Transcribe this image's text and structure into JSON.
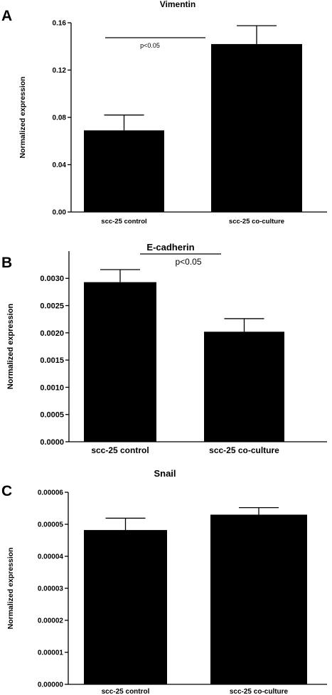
{
  "chart_data": [
    {
      "panel": "A",
      "type": "bar",
      "title": "Vimentin",
      "ylabel": "Normalized expression",
      "xlabel": "",
      "categories": [
        "scc-25 control",
        "scc-25 co-culture"
      ],
      "values": [
        0.069,
        0.142
      ],
      "errors": [
        0.013,
        0.0155
      ],
      "ylim": [
        0,
        0.16
      ],
      "yticks": [
        "0.00",
        "0.04",
        "0.08",
        "0.12",
        "0.16"
      ],
      "annotation": "p<0.05",
      "grid": false,
      "colors": {
        "bar": "#000000"
      }
    },
    {
      "panel": "B",
      "type": "bar",
      "title": "E-cadherin",
      "ylabel": "Normalized expression",
      "xlabel": "",
      "categories": [
        "scc-25 control",
        "scc-25 co-culture"
      ],
      "values": [
        0.00293,
        0.00202
      ],
      "errors": [
        0.00023,
        0.00024
      ],
      "ylim": [
        0,
        0.0035
      ],
      "yticks": [
        "0.0000",
        "0.0005",
        "0.0010",
        "0.0015",
        "0.0020",
        "0.0025",
        "0.0030"
      ],
      "annotation": "p<0.05",
      "grid": false,
      "colors": {
        "bar": "#000000"
      }
    },
    {
      "panel": "C",
      "type": "bar",
      "title": "Snail",
      "ylabel": "Normalized expression",
      "xlabel": "",
      "categories": [
        "scc-25 control",
        "scc-25 co-culture"
      ],
      "values": [
        4.82e-05,
        5.3e-05
      ],
      "errors": [
        3.7e-06,
        2.2e-06
      ],
      "ylim": [
        0,
        6e-05
      ],
      "yticks": [
        "0.00000",
        "0.00001",
        "0.00002",
        "0.00003",
        "0.00004",
        "0.00005",
        "0.00006"
      ],
      "annotation": "",
      "grid": false,
      "colors": {
        "bar": "#000000"
      }
    }
  ]
}
